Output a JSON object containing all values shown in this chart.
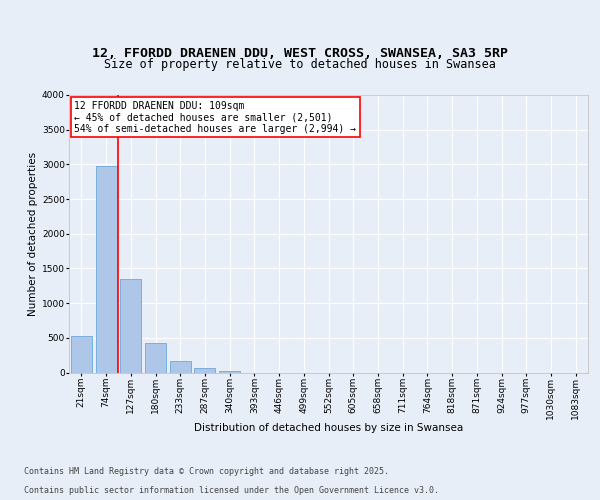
{
  "title_line1": "12, FFORDD DRAENEN DDU, WEST CROSS, SWANSEA, SA3 5RP",
  "title_line2": "Size of property relative to detached houses in Swansea",
  "xlabel": "Distribution of detached houses by size in Swansea",
  "ylabel": "Number of detached properties",
  "categories": [
    "21sqm",
    "74sqm",
    "127sqm",
    "180sqm",
    "233sqm",
    "287sqm",
    "340sqm",
    "393sqm",
    "446sqm",
    "499sqm",
    "552sqm",
    "605sqm",
    "658sqm",
    "711sqm",
    "764sqm",
    "818sqm",
    "871sqm",
    "924sqm",
    "977sqm",
    "1030sqm",
    "1083sqm"
  ],
  "values": [
    530,
    2970,
    1350,
    420,
    160,
    60,
    20,
    0,
    0,
    0,
    0,
    0,
    0,
    0,
    0,
    0,
    0,
    0,
    0,
    0,
    0
  ],
  "bar_color": "#aec6e8",
  "bar_edge_color": "#5a9fd4",
  "vline_color": "red",
  "vline_x": 1.5,
  "annotation_text_line1": "12 FFORDD DRAENEN DDU: 109sqm",
  "annotation_text_line2": "← 45% of detached houses are smaller (2,501)",
  "annotation_text_line3": "54% of semi-detached houses are larger (2,994) →",
  "ylim": [
    0,
    4000
  ],
  "yticks": [
    0,
    500,
    1000,
    1500,
    2000,
    2500,
    3000,
    3500,
    4000
  ],
  "background_color": "#e8eef8",
  "plot_background_color": "#e8eef8",
  "grid_color": "#ffffff",
  "footer_line1": "Contains HM Land Registry data © Crown copyright and database right 2025.",
  "footer_line2": "Contains public sector information licensed under the Open Government Licence v3.0.",
  "title_fontsize": 9.5,
  "subtitle_fontsize": 8.5,
  "axis_fontsize": 7.5,
  "tick_fontsize": 6.5,
  "annotation_fontsize": 7,
  "footer_fontsize": 6.0
}
